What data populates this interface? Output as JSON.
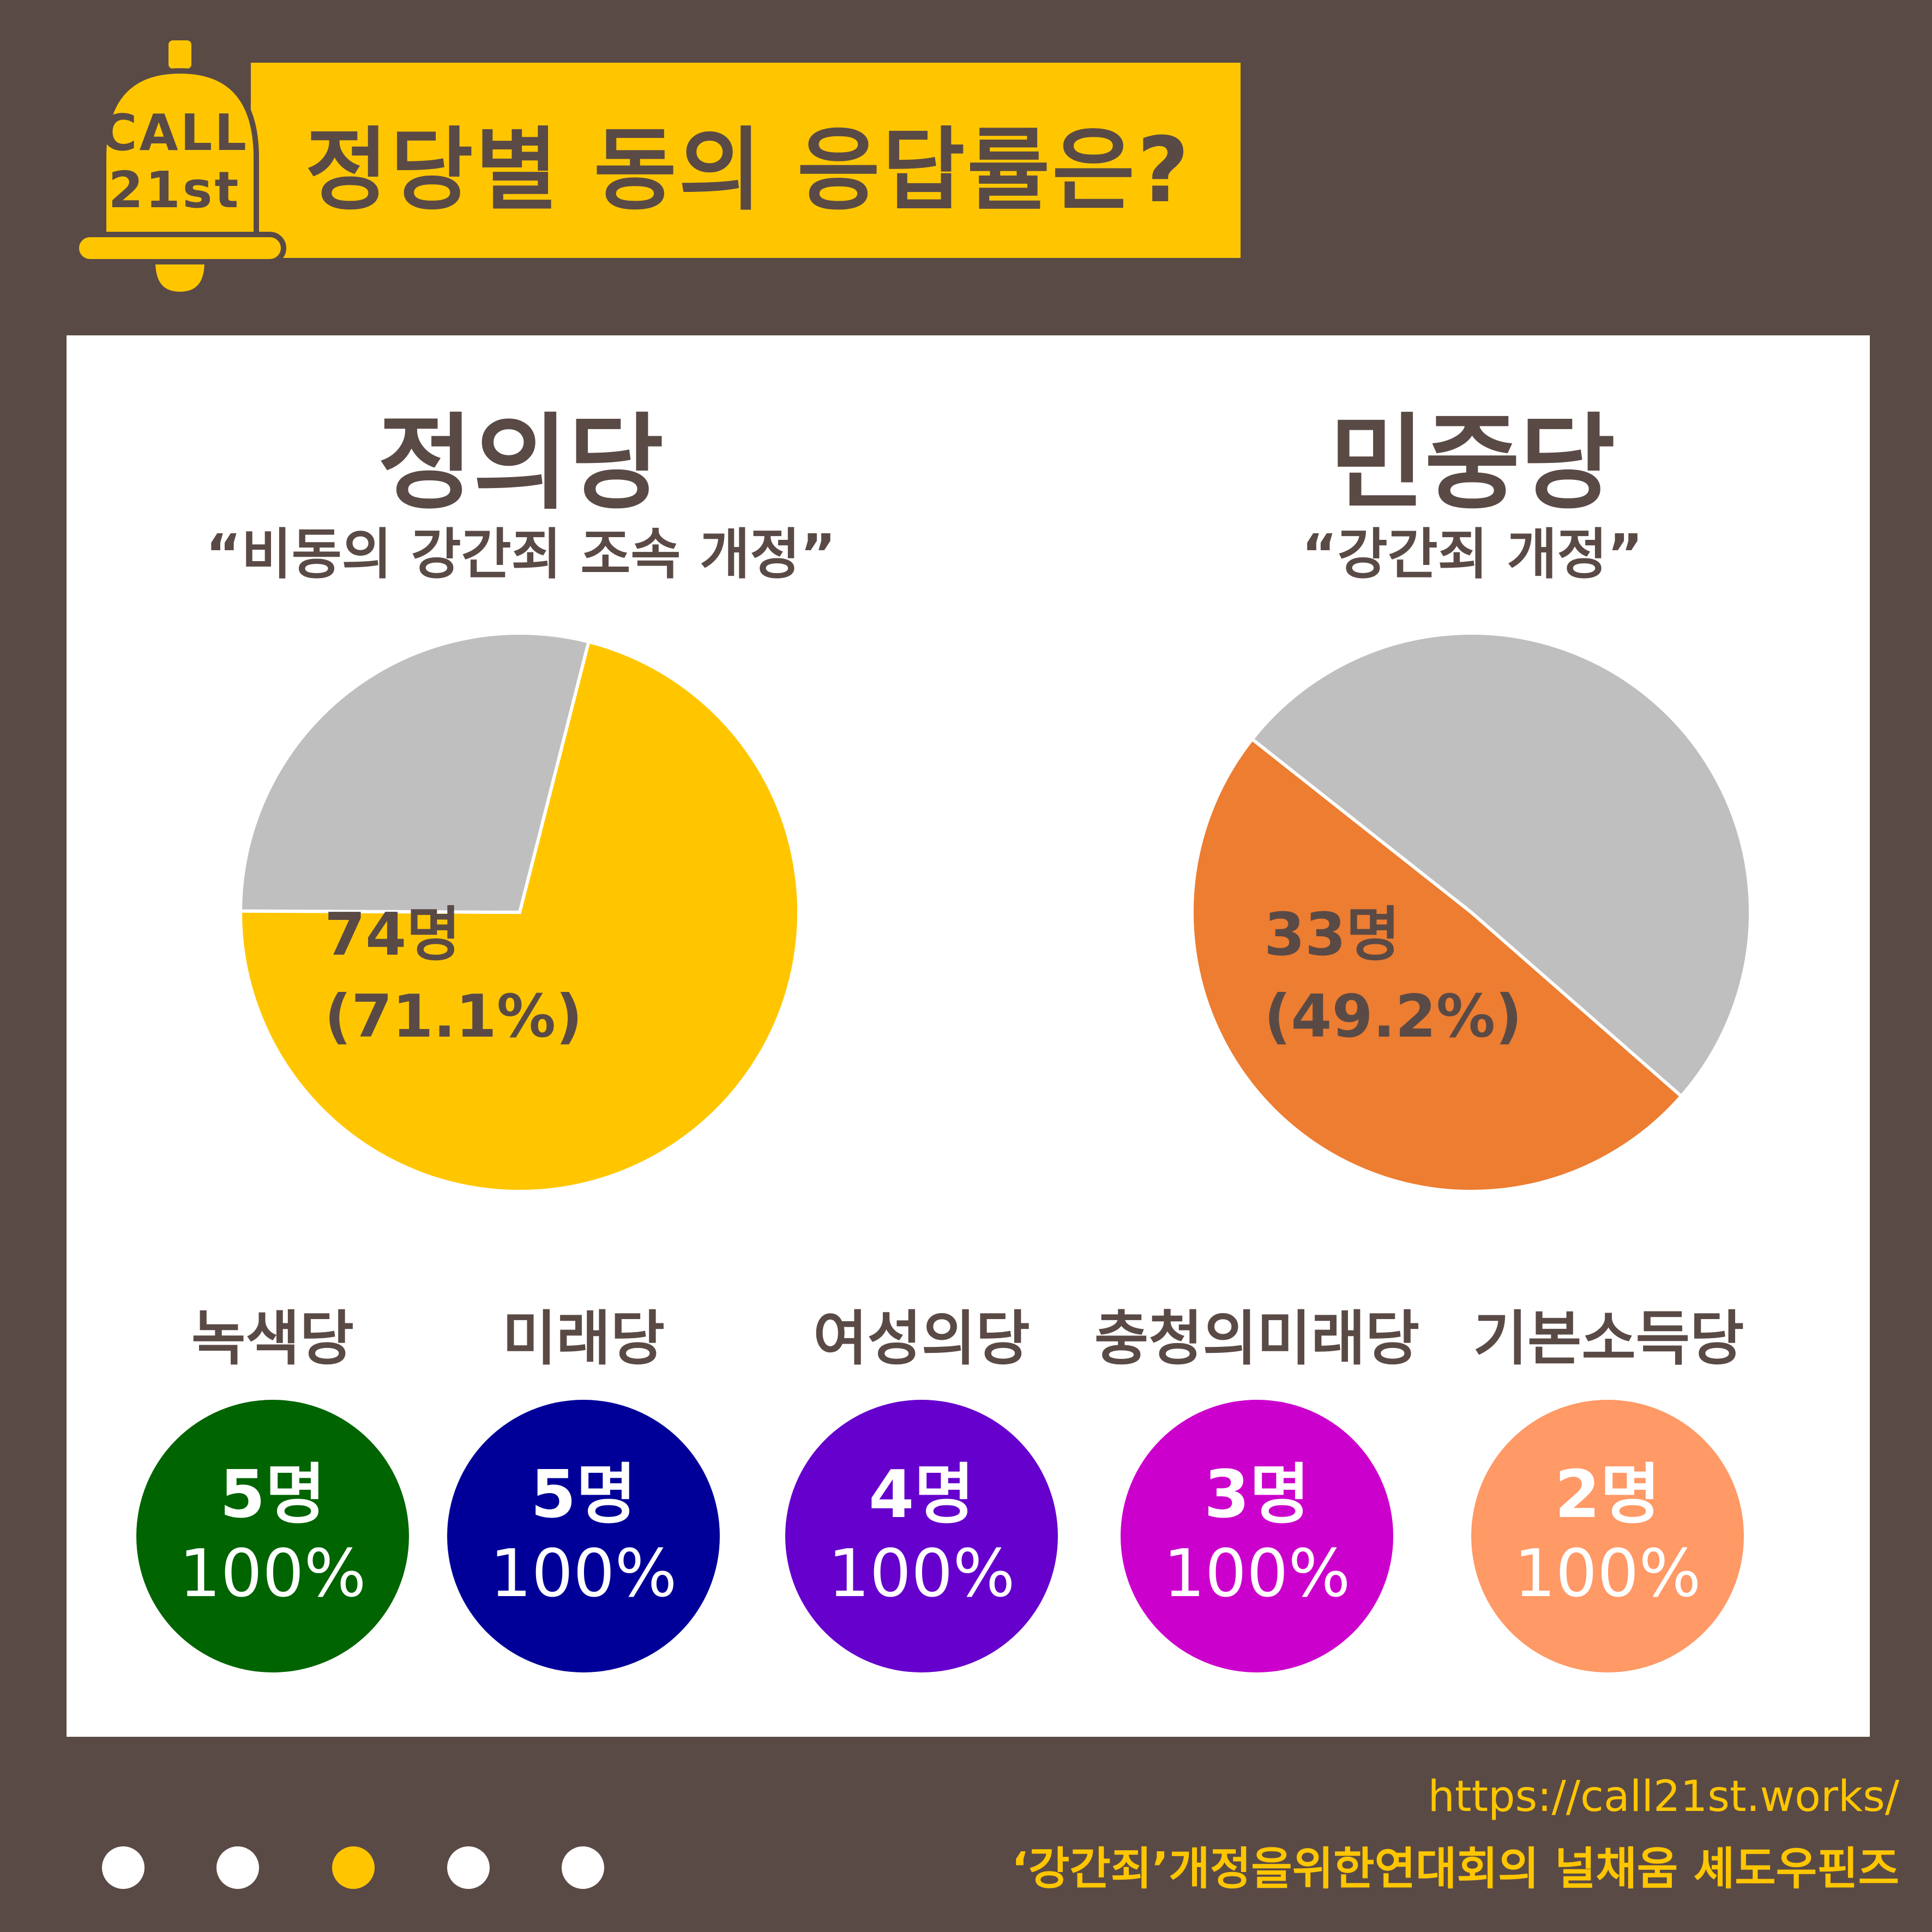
{
  "header": {
    "logo_line1": "CALL",
    "logo_line2": "21st",
    "title": "정당별 동의 응답률은?"
  },
  "parties_main": [
    {
      "name": "정의당",
      "subtitle": "“비동의 강간죄 조속 개정”",
      "count_label": "74명",
      "percent_label": "(71.1%)"
    },
    {
      "name": "민중당",
      "subtitle": "“강간죄 개정”",
      "count_label": "33명",
      "percent_label": "(49.2%)"
    }
  ],
  "parties_small": [
    {
      "name": "녹색당",
      "count_label": "5명",
      "percent_label": "100%",
      "color": "#006400"
    },
    {
      "name": "미래당",
      "count_label": "5명",
      "percent_label": "100%",
      "color": "#000099"
    },
    {
      "name": "여성의당",
      "count_label": "4명",
      "percent_label": "100%",
      "color": "#6600cc"
    },
    {
      "name": "충청의미래당",
      "count_label": "3명",
      "percent_label": "100%",
      "color": "#cc00cc"
    },
    {
      "name": "기본소득당",
      "count_label": "2명",
      "percent_label": "100%",
      "color": "#ff9966"
    }
  ],
  "chart_data": [
    {
      "type": "pie",
      "title": "정의당",
      "subtitle": "“비동의 강간죄 조속 개정”",
      "slices": [
        {
          "value": 71.1,
          "color": "#ffc600",
          "label": "74명 (71.1%)"
        },
        {
          "value": 28.9,
          "color": "#bfbfbf",
          "label": ""
        }
      ]
    },
    {
      "type": "pie",
      "title": "민중당",
      "subtitle": "“강간죄 개정”",
      "slices": [
        {
          "value": 49.2,
          "color": "#ed7d31",
          "label": "33명 (49.2%)"
        },
        {
          "value": 50.8,
          "color": "#bfbfbf",
          "label": ""
        }
      ]
    }
  ],
  "footer": {
    "url": "https://call21st.works/",
    "credit": "‘강간죄’개정을위한연대회의 널채움 셰도우핀즈",
    "pagination_active": 2
  }
}
